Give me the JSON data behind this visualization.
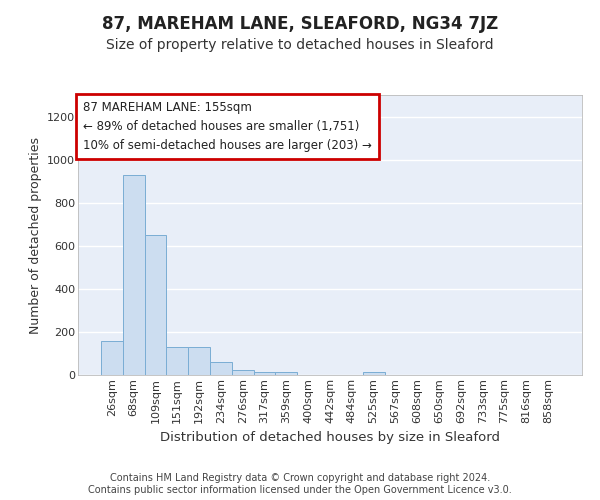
{
  "title": "87, MAREHAM LANE, SLEAFORD, NG34 7JZ",
  "subtitle": "Size of property relative to detached houses in Sleaford",
  "xlabel": "Distribution of detached houses by size in Sleaford",
  "ylabel": "Number of detached properties",
  "categories": [
    "26sqm",
    "68sqm",
    "109sqm",
    "151sqm",
    "192sqm",
    "234sqm",
    "276sqm",
    "317sqm",
    "359sqm",
    "400sqm",
    "442sqm",
    "484sqm",
    "525sqm",
    "567sqm",
    "608sqm",
    "650sqm",
    "692sqm",
    "733sqm",
    "775sqm",
    "816sqm",
    "858sqm"
  ],
  "values": [
    160,
    930,
    650,
    130,
    130,
    60,
    25,
    12,
    12,
    0,
    0,
    0,
    12,
    0,
    0,
    0,
    0,
    0,
    0,
    0,
    0
  ],
  "bar_color": "#ccddf0",
  "bar_edge_color": "#7aadd4",
  "ylim": [
    0,
    1300
  ],
  "yticks": [
    0,
    200,
    400,
    600,
    800,
    1000,
    1200
  ],
  "annotation_line1": "87 MAREHAM LANE: 155sqm",
  "annotation_line2": "← 89% of detached houses are smaller (1,751)",
  "annotation_line3": "10% of semi-detached houses are larger (203) →",
  "annotation_box_color": "#ffffff",
  "annotation_box_edge": "#cc0000",
  "bg_color": "#e8eef8",
  "fig_bg_color": "#ffffff",
  "footer": "Contains HM Land Registry data © Crown copyright and database right 2024.\nContains public sector information licensed under the Open Government Licence v3.0.",
  "grid_color": "#ffffff",
  "title_fontsize": 12,
  "subtitle_fontsize": 10,
  "axis_label_fontsize": 9,
  "tick_fontsize": 8,
  "footer_fontsize": 7
}
